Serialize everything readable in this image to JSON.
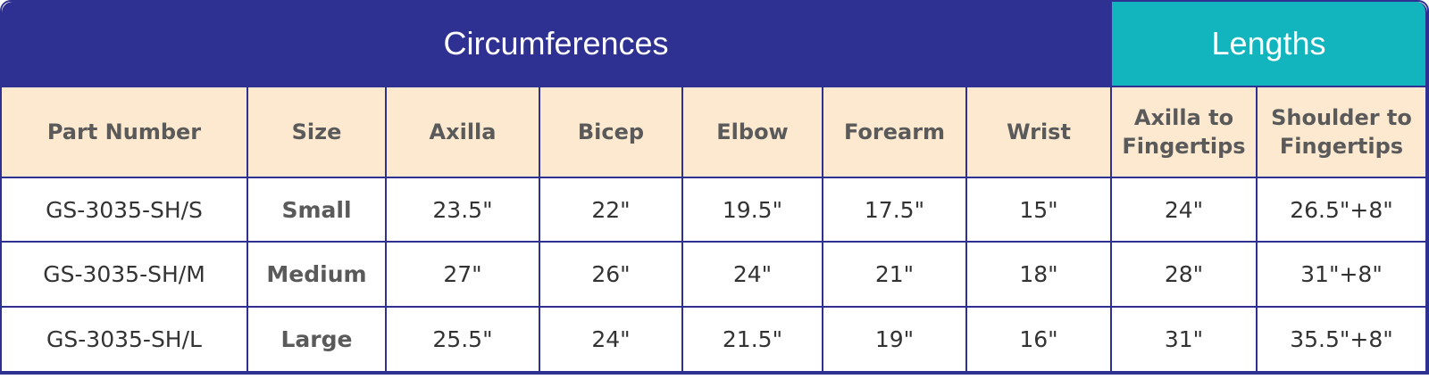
{
  "table": {
    "groups": [
      "Circumferences",
      "Lengths"
    ],
    "columns": [
      "Part Number",
      "Size",
      "Axilla",
      "Bicep",
      "Elbow",
      "Forearm",
      "Wrist",
      "Axilla to Fingertips",
      "Shoulder to Fingertips"
    ],
    "rows": [
      [
        "GS-3035-SH/S",
        "Small",
        "23.5\"",
        "22\"",
        "19.5\"",
        "17.5\"",
        "15\"",
        "24\"",
        "26.5\"+8\""
      ],
      [
        "GS-3035-SH/M",
        "Medium",
        "27\"",
        "26\"",
        "24\"",
        "21\"",
        "18\"",
        "28\"",
        "31\"+8\""
      ],
      [
        "GS-3035-SH/L",
        "Large",
        "25.5\"",
        "24\"",
        "21.5\"",
        "19\"",
        "16\"",
        "31\"",
        "35.5\"+8\""
      ]
    ]
  }
}
